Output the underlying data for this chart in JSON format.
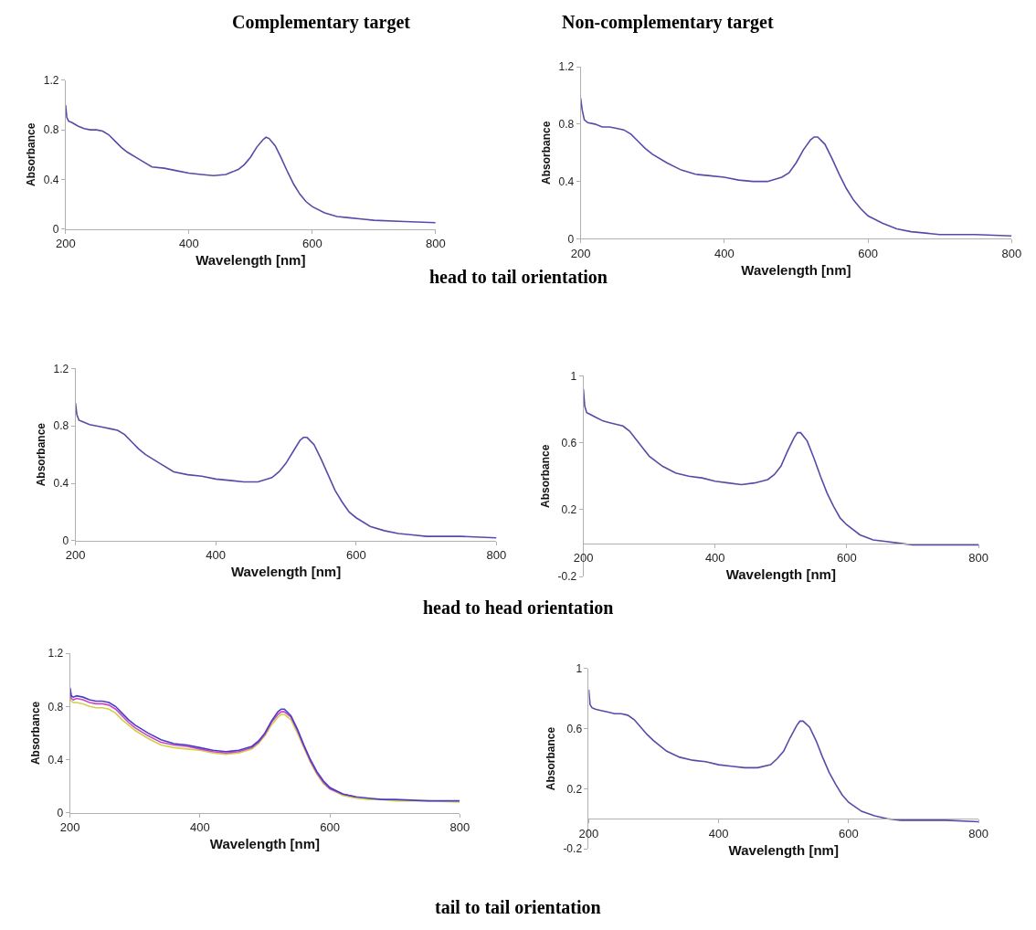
{
  "chart_data": [
    {
      "type": "line",
      "title": "Complementary target",
      "annotations": [
        "head to tail orientation"
      ],
      "xlabel": "Wavelength [nm]",
      "ylabel": "Absorbance",
      "xlim": [
        200,
        800
      ],
      "xticks": [
        200,
        400,
        600,
        800
      ],
      "ylim": [
        0,
        1.2
      ],
      "yticks": [
        0,
        0.4,
        0.8,
        1.2
      ],
      "x": [
        200,
        202,
        205,
        210,
        220,
        230,
        240,
        250,
        260,
        270,
        280,
        290,
        300,
        320,
        340,
        360,
        380,
        400,
        420,
        440,
        460,
        480,
        490,
        500,
        510,
        520,
        525,
        530,
        540,
        550,
        560,
        570,
        580,
        590,
        600,
        620,
        640,
        660,
        680,
        700,
        750,
        800
      ],
      "series": [
        {
          "color": "#5a4aa8",
          "values": [
            1.0,
            0.9,
            0.87,
            0.86,
            0.83,
            0.81,
            0.8,
            0.8,
            0.79,
            0.76,
            0.71,
            0.66,
            0.62,
            0.56,
            0.5,
            0.49,
            0.47,
            0.45,
            0.44,
            0.43,
            0.44,
            0.48,
            0.52,
            0.58,
            0.66,
            0.72,
            0.74,
            0.73,
            0.67,
            0.57,
            0.46,
            0.36,
            0.28,
            0.22,
            0.18,
            0.13,
            0.1,
            0.09,
            0.08,
            0.07,
            0.06,
            0.05
          ]
        }
      ]
    },
    {
      "type": "line",
      "title": "Non-complementary target",
      "xlabel": "Wavelength [nm]",
      "ylabel": "Absorbance",
      "xlim": [
        200,
        800
      ],
      "xticks": [
        200,
        400,
        600,
        800
      ],
      "ylim": [
        0,
        1.2
      ],
      "yticks": [
        0,
        0.4,
        0.8,
        1.2
      ],
      "x": [
        200,
        202,
        205,
        210,
        220,
        230,
        240,
        250,
        260,
        270,
        280,
        290,
        300,
        320,
        340,
        360,
        380,
        400,
        420,
        440,
        460,
        480,
        490,
        500,
        510,
        520,
        525,
        530,
        540,
        550,
        560,
        570,
        580,
        590,
        600,
        620,
        640,
        660,
        680,
        700,
        750,
        800
      ],
      "series": [
        {
          "color": "#5a4aa8",
          "values": [
            0.98,
            0.9,
            0.83,
            0.81,
            0.8,
            0.78,
            0.78,
            0.77,
            0.76,
            0.73,
            0.68,
            0.63,
            0.59,
            0.53,
            0.48,
            0.45,
            0.44,
            0.43,
            0.41,
            0.4,
            0.4,
            0.43,
            0.46,
            0.53,
            0.62,
            0.69,
            0.71,
            0.71,
            0.66,
            0.56,
            0.45,
            0.35,
            0.27,
            0.21,
            0.16,
            0.11,
            0.07,
            0.05,
            0.04,
            0.03,
            0.03,
            0.02
          ]
        }
      ]
    },
    {
      "type": "line",
      "xlabel": "Wavelength [nm]",
      "ylabel": "Absorbance",
      "annotations": [
        "head to head orientation"
      ],
      "xlim": [
        200,
        800
      ],
      "xticks": [
        200,
        400,
        600,
        800
      ],
      "ylim": [
        0,
        1.2
      ],
      "yticks": [
        0,
        0.4,
        0.8,
        1.2
      ],
      "x": [
        200,
        202,
        205,
        210,
        220,
        230,
        240,
        250,
        260,
        270,
        280,
        290,
        300,
        320,
        340,
        360,
        380,
        400,
        420,
        440,
        460,
        480,
        490,
        500,
        510,
        520,
        525,
        530,
        540,
        550,
        560,
        570,
        580,
        590,
        600,
        620,
        640,
        660,
        680,
        700,
        750,
        800
      ],
      "series": [
        {
          "color": "#5a4aa8",
          "values": [
            0.96,
            0.88,
            0.84,
            0.83,
            0.81,
            0.8,
            0.79,
            0.78,
            0.77,
            0.74,
            0.69,
            0.64,
            0.6,
            0.54,
            0.48,
            0.46,
            0.45,
            0.43,
            0.42,
            0.41,
            0.41,
            0.44,
            0.48,
            0.54,
            0.62,
            0.7,
            0.72,
            0.72,
            0.67,
            0.57,
            0.46,
            0.35,
            0.27,
            0.2,
            0.16,
            0.1,
            0.07,
            0.05,
            0.04,
            0.03,
            0.03,
            0.02
          ]
        }
      ]
    },
    {
      "type": "line",
      "xlabel": "Wavelength [nm]",
      "ylabel": "Absorbance",
      "xlim": [
        200,
        800
      ],
      "xticks": [
        200,
        400,
        600,
        800
      ],
      "ylim": [
        -0.2,
        1
      ],
      "yticks": [
        -0.2,
        0.2,
        0.6,
        1
      ],
      "x": [
        200,
        202,
        205,
        210,
        220,
        230,
        240,
        250,
        260,
        270,
        280,
        290,
        300,
        320,
        340,
        360,
        380,
        400,
        420,
        440,
        460,
        480,
        490,
        500,
        510,
        520,
        525,
        530,
        540,
        550,
        560,
        570,
        580,
        590,
        600,
        620,
        640,
        660,
        680,
        700,
        750,
        800
      ],
      "series": [
        {
          "color": "#5a4aa8",
          "values": [
            0.92,
            0.82,
            0.78,
            0.77,
            0.75,
            0.73,
            0.72,
            0.71,
            0.7,
            0.67,
            0.62,
            0.57,
            0.52,
            0.46,
            0.42,
            0.4,
            0.39,
            0.37,
            0.36,
            0.35,
            0.36,
            0.38,
            0.41,
            0.46,
            0.55,
            0.63,
            0.66,
            0.66,
            0.61,
            0.51,
            0.4,
            0.3,
            0.22,
            0.15,
            0.11,
            0.05,
            0.02,
            0.01,
            0.0,
            -0.01,
            -0.01,
            -0.01
          ]
        }
      ]
    },
    {
      "type": "line",
      "xlabel": "Wavelength [nm]",
      "ylabel": "Absorbance",
      "annotations": [
        "tail to tail orientation"
      ],
      "xlim": [
        200,
        800
      ],
      "xticks": [
        200,
        400,
        600,
        800
      ],
      "ylim": [
        0,
        1.2
      ],
      "yticks": [
        0,
        0.4,
        0.8,
        1.2
      ],
      "x": [
        200,
        202,
        205,
        210,
        220,
        230,
        240,
        250,
        260,
        270,
        280,
        290,
        300,
        320,
        340,
        360,
        380,
        400,
        420,
        440,
        460,
        480,
        490,
        500,
        510,
        520,
        525,
        530,
        540,
        550,
        560,
        570,
        580,
        590,
        600,
        620,
        640,
        660,
        680,
        700,
        750,
        800
      ],
      "series": [
        {
          "color": "#d4d048",
          "values": [
            0.86,
            0.84,
            0.83,
            0.83,
            0.82,
            0.8,
            0.79,
            0.79,
            0.78,
            0.75,
            0.7,
            0.66,
            0.62,
            0.56,
            0.51,
            0.49,
            0.48,
            0.47,
            0.45,
            0.44,
            0.45,
            0.48,
            0.52,
            0.58,
            0.66,
            0.72,
            0.74,
            0.74,
            0.7,
            0.6,
            0.49,
            0.38,
            0.29,
            0.22,
            0.18,
            0.13,
            0.11,
            0.1,
            0.1,
            0.09,
            0.09,
            0.08
          ]
        },
        {
          "color": "#c848c0",
          "values": [
            0.9,
            0.86,
            0.85,
            0.86,
            0.85,
            0.83,
            0.82,
            0.82,
            0.81,
            0.78,
            0.73,
            0.68,
            0.64,
            0.58,
            0.53,
            0.51,
            0.5,
            0.48,
            0.46,
            0.45,
            0.46,
            0.49,
            0.53,
            0.59,
            0.68,
            0.74,
            0.76,
            0.76,
            0.72,
            0.62,
            0.5,
            0.39,
            0.3,
            0.23,
            0.18,
            0.14,
            0.12,
            null,
            null,
            null,
            null,
            null
          ]
        },
        {
          "color": "#4a3cc8",
          "values": [
            0.94,
            0.88,
            0.87,
            0.88,
            0.87,
            0.85,
            0.84,
            0.84,
            0.83,
            0.8,
            0.75,
            0.7,
            0.66,
            0.6,
            0.55,
            0.52,
            0.51,
            0.49,
            0.47,
            0.46,
            0.47,
            0.5,
            0.54,
            0.6,
            0.69,
            0.76,
            0.78,
            0.78,
            0.73,
            0.63,
            0.51,
            0.4,
            0.31,
            0.24,
            0.19,
            0.14,
            0.12,
            0.11,
            0.1,
            0.1,
            0.09,
            0.09
          ]
        }
      ]
    },
    {
      "type": "line",
      "xlabel": "Wavelength [nm]",
      "ylabel": "Absorbance",
      "xlim": [
        200,
        800
      ],
      "xticks": [
        200,
        400,
        600,
        800
      ],
      "ylim": [
        -0.2,
        1
      ],
      "yticks": [
        -0.2,
        0.2,
        0.6,
        1
      ],
      "x": [
        200,
        202,
        205,
        210,
        220,
        230,
        240,
        250,
        260,
        270,
        280,
        290,
        300,
        320,
        340,
        360,
        380,
        400,
        420,
        440,
        460,
        480,
        490,
        500,
        510,
        520,
        525,
        530,
        540,
        550,
        560,
        570,
        580,
        590,
        600,
        620,
        640,
        660,
        680,
        700,
        750,
        800
      ],
      "series": [
        {
          "color": "#5a4aa8",
          "values": [
            0.86,
            0.76,
            0.74,
            0.73,
            0.72,
            0.71,
            0.7,
            0.7,
            0.69,
            0.66,
            0.61,
            0.56,
            0.52,
            0.45,
            0.41,
            0.39,
            0.38,
            0.36,
            0.35,
            0.34,
            0.34,
            0.36,
            0.4,
            0.45,
            0.54,
            0.62,
            0.65,
            0.65,
            0.61,
            0.52,
            0.41,
            0.31,
            0.23,
            0.16,
            0.11,
            0.05,
            0.02,
            0.0,
            -0.01,
            -0.01,
            -0.01,
            -0.02
          ]
        }
      ]
    }
  ]
}
